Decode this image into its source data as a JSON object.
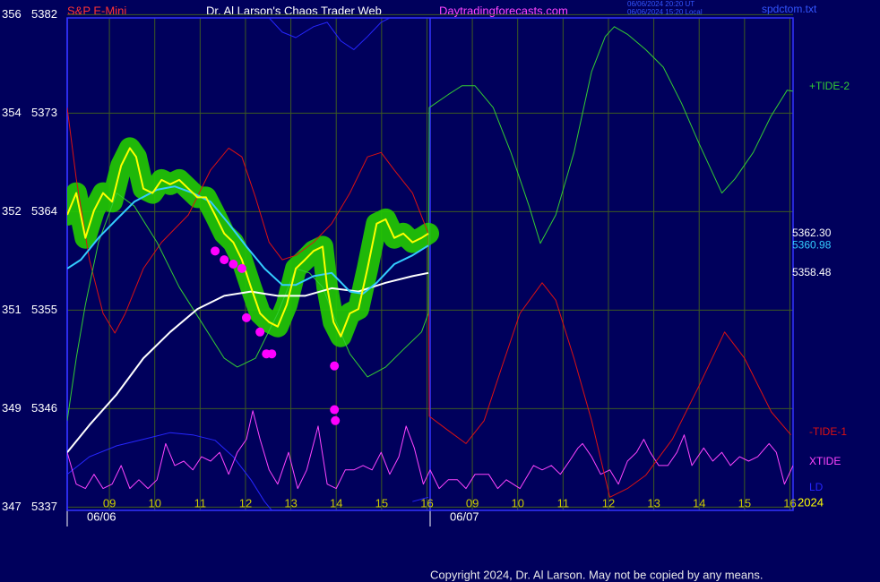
{
  "chart_data": {
    "type": "line",
    "header": {
      "symbol": "S&P E-Mini",
      "title": "Dr. Al Larson's Chaos Trader Web",
      "site": "Daytradingforecasts.com",
      "timestamp_ut": "06/06/2024 20:20 UT",
      "timestamp_local": "06/06/2024 15:20 Local",
      "file": "spdctom.txt"
    },
    "year": "2024",
    "copyright": "Copyright 2024, Dr. Al Larson. May not be copied by any means.",
    "xlim": [
      8.07,
      24.07
    ],
    "xticks": [
      {
        "value": 9,
        "label": "09"
      },
      10,
      11,
      12,
      13,
      14,
      15,
      16,
      {
        "value": 17,
        "label": "09"
      },
      {
        "value": 18,
        "label": "10"
      },
      {
        "value": 19,
        "label": "11"
      },
      {
        "value": 20,
        "label": "12"
      },
      {
        "value": 21,
        "label": "13"
      },
      {
        "value": 22,
        "label": "14"
      },
      {
        "value": 23,
        "label": "15"
      },
      {
        "value": 24,
        "label": "16"
      }
    ],
    "ylim": [
      5336.7,
      5381.7
    ],
    "yticks": [
      5382,
      5373,
      5364,
      5355,
      5346,
      5337
    ],
    "degree_ticks": [
      356,
      354,
      352,
      351,
      349,
      347
    ],
    "grid": true,
    "days": [
      {
        "label": "06/06",
        "start": 8.07
      },
      {
        "label": "06/07",
        "start": 16.07
      }
    ],
    "series": [
      {
        "name": "LD",
        "color": "#2626ff",
        "x": [
          8.07,
          8.56,
          9.16,
          9.75,
          10.34,
          10.84,
          11.33,
          11.73,
          12.12,
          12.42,
          12.58,
          null,
          12.52,
          12.81,
          13.11,
          13.5,
          13.8,
          14.1,
          14.39,
          14.69,
          14.99,
          15.18,
          null,
          15.68,
          16.03
        ],
        "values": [
          5340.0,
          5341.6,
          5342.6,
          5343.2,
          5343.8,
          5343.6,
          5343.1,
          5341.6,
          5339.5,
          5337.5,
          5336.7,
          null,
          5381.7,
          5380.4,
          5379.9,
          5380.9,
          5381.3,
          5379.6,
          5378.8,
          5380.0,
          5381.3,
          5381.7,
          null,
          5337.5,
          5337.9
        ]
      },
      {
        "name": "XTIDE",
        "color": "#ff44ff",
        "x": [
          8.07,
          8.27,
          8.47,
          8.66,
          8.86,
          9.06,
          9.26,
          9.45,
          9.65,
          9.85,
          10.05,
          10.24,
          10.44,
          10.64,
          10.84,
          11.03,
          11.23,
          11.43,
          11.63,
          11.82,
          12.02,
          12.16,
          12.32,
          12.52,
          12.71,
          12.95,
          13.15,
          13.35,
          13.6,
          13.8,
          14.0,
          14.2,
          14.39,
          14.59,
          14.79,
          14.99,
          15.18,
          15.38,
          15.54,
          15.72,
          15.92,
          16.07,
          16.27,
          16.47,
          16.67,
          16.86,
          17.06,
          17.36,
          17.56,
          17.75,
          18.05,
          18.35,
          18.54,
          18.74,
          18.94,
          19.14,
          19.33,
          19.43,
          19.63,
          19.83,
          20.03,
          20.22,
          20.42,
          20.62,
          20.78,
          20.92,
          21.11,
          21.31,
          21.51,
          21.67,
          21.84,
          22.1,
          22.3,
          22.5,
          22.69,
          22.89,
          23.09,
          23.29,
          23.54,
          23.7,
          23.88,
          24.07
        ],
        "values": [
          5342.0,
          5339.1,
          5338.7,
          5340.0,
          5338.7,
          5339.1,
          5340.8,
          5338.7,
          5339.5,
          5338.7,
          5339.5,
          5342.8,
          5340.8,
          5341.2,
          5340.4,
          5341.6,
          5341.2,
          5342.0,
          5340.0,
          5342.0,
          5343.2,
          5345.8,
          5343.2,
          5340.4,
          5339.1,
          5342.0,
          5338.7,
          5340.4,
          5344.4,
          5339.1,
          5338.7,
          5340.4,
          5340.4,
          5340.8,
          5340.4,
          5342.0,
          5340.0,
          5341.6,
          5344.4,
          5342.4,
          5339.1,
          5340.4,
          5338.7,
          5339.5,
          5339.5,
          5338.7,
          5340.0,
          5340.0,
          5338.7,
          5339.5,
          5338.7,
          5340.8,
          5340.4,
          5340.8,
          5340.0,
          5341.2,
          5342.4,
          5342.8,
          5341.6,
          5340.0,
          5340.4,
          5339.1,
          5341.2,
          5342.0,
          5343.2,
          5342.0,
          5340.8,
          5340.8,
          5342.0,
          5343.6,
          5340.8,
          5342.4,
          5341.2,
          5342.0,
          5340.8,
          5341.6,
          5341.2,
          5341.6,
          5342.8,
          5342.0,
          5339.1,
          5340.8
        ]
      },
      {
        "name": "-TIDE-1",
        "color": "#dd1111",
        "x": [
          8.07,
          8.27,
          8.56,
          8.86,
          9.12,
          9.35,
          9.75,
          10.15,
          10.74,
          11.23,
          11.63,
          11.92,
          12.22,
          12.52,
          12.81,
          13.11,
          13.5,
          13.9,
          14.3,
          14.69,
          14.99,
          15.28,
          15.68,
          16.03,
          16.05,
          16.47,
          16.86,
          17.26,
          17.65,
          18.05,
          18.54,
          18.84,
          19.24,
          19.63,
          20.03,
          20.42,
          20.82,
          21.41,
          22.0,
          22.56,
          23.0,
          23.59,
          24.02
        ],
        "values": [
          5373.5,
          5367.0,
          5359.6,
          5354.7,
          5352.9,
          5354.7,
          5358.8,
          5361.2,
          5363.7,
          5367.8,
          5369.8,
          5369.0,
          5365.3,
          5361.2,
          5359.6,
          5360.0,
          5361.2,
          5362.9,
          5365.7,
          5369.0,
          5369.4,
          5367.8,
          5365.7,
          5362.0,
          5345.3,
          5344.0,
          5342.8,
          5344.9,
          5349.8,
          5354.7,
          5357.5,
          5355.9,
          5350.6,
          5344.9,
          5337.9,
          5338.7,
          5339.9,
          5343.2,
          5348.1,
          5353.0,
          5350.6,
          5345.7,
          5343.6
        ]
      },
      {
        "name": "+TIDE-2",
        "color": "#33cc33",
        "x": [
          8.07,
          8.27,
          8.47,
          8.76,
          9.16,
          9.55,
          10.05,
          10.54,
          11.03,
          11.53,
          11.82,
          12.22,
          12.71,
          13.11,
          13.41,
          13.7,
          14.0,
          14.3,
          14.69,
          15.09,
          15.48,
          15.88,
          16.03,
          16.05,
          16.47,
          16.77,
          17.06,
          17.46,
          17.85,
          18.25,
          18.5,
          18.84,
          19.24,
          19.63,
          19.93,
          20.13,
          20.42,
          20.82,
          21.21,
          21.61,
          22.0,
          22.5,
          22.79,
          23.19,
          23.58,
          23.94,
          24.07
        ],
        "values": [
          5344.9,
          5350.6,
          5355.5,
          5361.2,
          5365.7,
          5364.5,
          5361.2,
          5357.1,
          5353.9,
          5350.6,
          5349.8,
          5350.6,
          5354.7,
          5358.8,
          5358.4,
          5357.1,
          5353.9,
          5351.0,
          5348.9,
          5349.8,
          5351.4,
          5353.0,
          5354.7,
          5373.5,
          5374.7,
          5375.5,
          5375.5,
          5373.5,
          5369.4,
          5364.5,
          5361.1,
          5363.7,
          5369.4,
          5376.8,
          5380.0,
          5380.9,
          5380.2,
          5378.8,
          5377.2,
          5373.9,
          5370.2,
          5365.7,
          5367.0,
          5369.4,
          5372.7,
          5375.1,
          5375.0
        ]
      },
      {
        "color": "#ffffff",
        "end_label": "5358.48",
        "label_color": "#ffffff",
        "x": [
          8.07,
          8.56,
          9.16,
          9.75,
          10.34,
          10.94,
          11.53,
          12.12,
          12.71,
          13.31,
          13.9,
          14.49,
          15.09,
          15.68,
          16.03
        ],
        "values": [
          5342.0,
          5344.5,
          5347.3,
          5350.6,
          5353.0,
          5355.1,
          5356.3,
          5356.7,
          5356.3,
          5356.3,
          5357.0,
          5356.7,
          5357.5,
          5358.1,
          5358.4
        ]
      },
      {
        "color": "#33ccff",
        "end_label": "5360.98",
        "label_color": "#33ccff",
        "x": [
          8.07,
          8.37,
          8.76,
          9.16,
          9.55,
          10.05,
          10.44,
          10.84,
          11.23,
          11.63,
          12.02,
          12.42,
          12.81,
          13.11,
          13.5,
          13.9,
          14.3,
          14.59,
          14.89,
          15.28,
          15.68,
          16.03
        ],
        "values": [
          5358.8,
          5359.6,
          5361.6,
          5363.3,
          5364.9,
          5366.0,
          5366.3,
          5365.7,
          5364.9,
          5362.9,
          5360.8,
          5358.8,
          5357.3,
          5357.3,
          5358.1,
          5358.4,
          5356.7,
          5356.5,
          5357.5,
          5359.2,
          5360.0,
          5360.9
        ]
      },
      {
        "color": "#ffff00",
        "glow": "#22cc00",
        "end_label": "5362.30",
        "label_color": "#ffffff",
        "x": [
          8.07,
          8.27,
          8.47,
          8.66,
          8.86,
          9.06,
          9.26,
          9.45,
          9.59,
          9.75,
          9.95,
          10.15,
          10.34,
          10.54,
          10.74,
          10.94,
          11.13,
          11.33,
          11.53,
          11.73,
          11.92,
          12.12,
          12.32,
          12.52,
          12.71,
          12.91,
          13.11,
          13.31,
          13.5,
          13.7,
          13.8,
          13.94,
          14.1,
          14.3,
          14.49,
          14.69,
          14.89,
          15.09,
          15.28,
          15.48,
          15.68,
          15.88,
          16.03
        ],
        "values": [
          5363.7,
          5365.7,
          5361.6,
          5364.1,
          5365.7,
          5364.9,
          5368.2,
          5369.8,
          5369.0,
          5366.1,
          5365.7,
          5366.9,
          5366.5,
          5366.9,
          5366.1,
          5365.3,
          5365.3,
          5363.7,
          5362.0,
          5361.2,
          5359.6,
          5357.1,
          5354.7,
          5353.9,
          5353.5,
          5355.5,
          5358.8,
          5359.6,
          5360.4,
          5360.8,
          5357.1,
          5353.9,
          5352.6,
          5354.7,
          5355.1,
          5358.8,
          5362.9,
          5363.3,
          5361.6,
          5362.0,
          5361.2,
          5361.6,
          5362.0
        ]
      }
    ],
    "markers": {
      "color": "#ff00ff",
      "x": [
        11.33,
        11.53,
        11.73,
        11.92,
        12.02,
        12.32,
        12.46,
        12.58,
        13.96,
        13.96,
        13.98
      ],
      "values": [
        5360.4,
        5359.6,
        5359.2,
        5358.8,
        5354.3,
        5353.0,
        5351.0,
        5351.0,
        5349.9,
        5345.9,
        5344.9
      ]
    }
  }
}
